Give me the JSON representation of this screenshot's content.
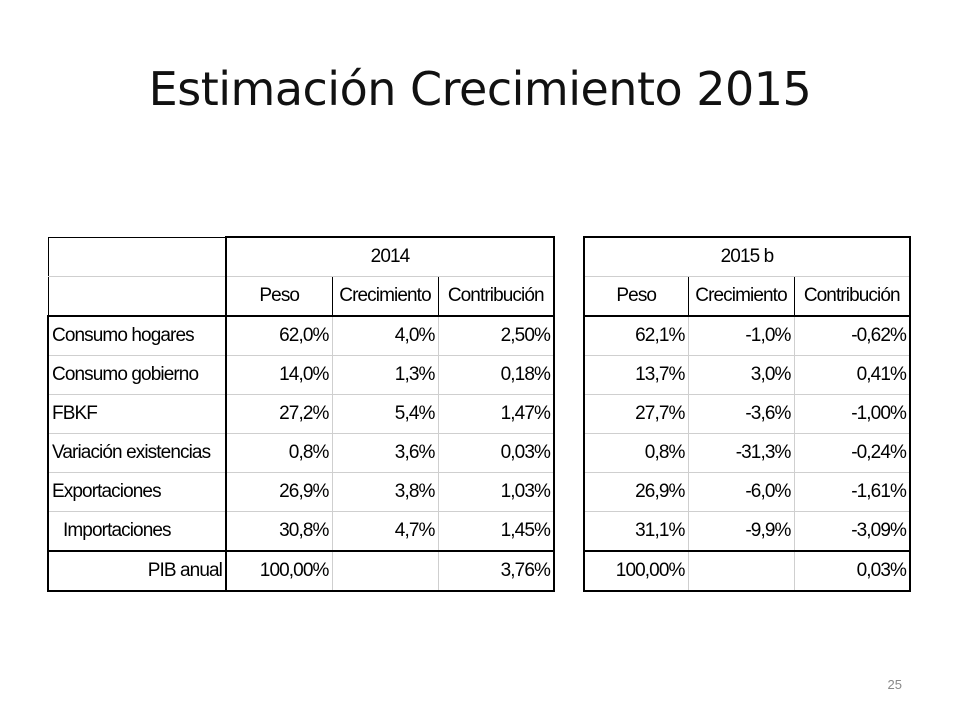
{
  "slide": {
    "title": "Estimación Crecimiento 2015",
    "page_number": "25"
  },
  "table": {
    "groups": [
      "2014",
      "2015 b"
    ],
    "subheaders": [
      "Peso",
      "Crecimiento",
      "Contribución",
      "Peso",
      "Crecimiento",
      "Contribución"
    ],
    "rows": [
      {
        "label": "Consumo hogares",
        "cells": [
          "62,0%",
          "4,0%",
          "2,50%",
          "62,1%",
          "-1,0%",
          "-0,62%"
        ]
      },
      {
        "label": "Consumo gobierno",
        "cells": [
          "14,0%",
          "1,3%",
          "0,18%",
          "13,7%",
          "3,0%",
          "0,41%"
        ]
      },
      {
        "label": "FBKF",
        "cells": [
          "27,2%",
          "5,4%",
          "1,47%",
          "27,7%",
          "-3,6%",
          "-1,00%"
        ]
      },
      {
        "label": "Variación existencias",
        "cells": [
          "0,8%",
          "3,6%",
          "0,03%",
          "0,8%",
          "-31,3%",
          "-0,24%"
        ]
      },
      {
        "label": "Exportaciones",
        "cells": [
          "26,9%",
          "3,8%",
          "1,03%",
          "26,9%",
          "-6,0%",
          "-1,61%"
        ]
      },
      {
        "label": "Importaciones",
        "cells": [
          "30,8%",
          "4,7%",
          "1,45%",
          "31,1%",
          "-9,9%",
          "-3,09%"
        ]
      }
    ],
    "total": {
      "label": "PIB anual",
      "cells": [
        "100,00%",
        "",
        "3,76%",
        "100,00%",
        "",
        "0,03%"
      ]
    }
  }
}
